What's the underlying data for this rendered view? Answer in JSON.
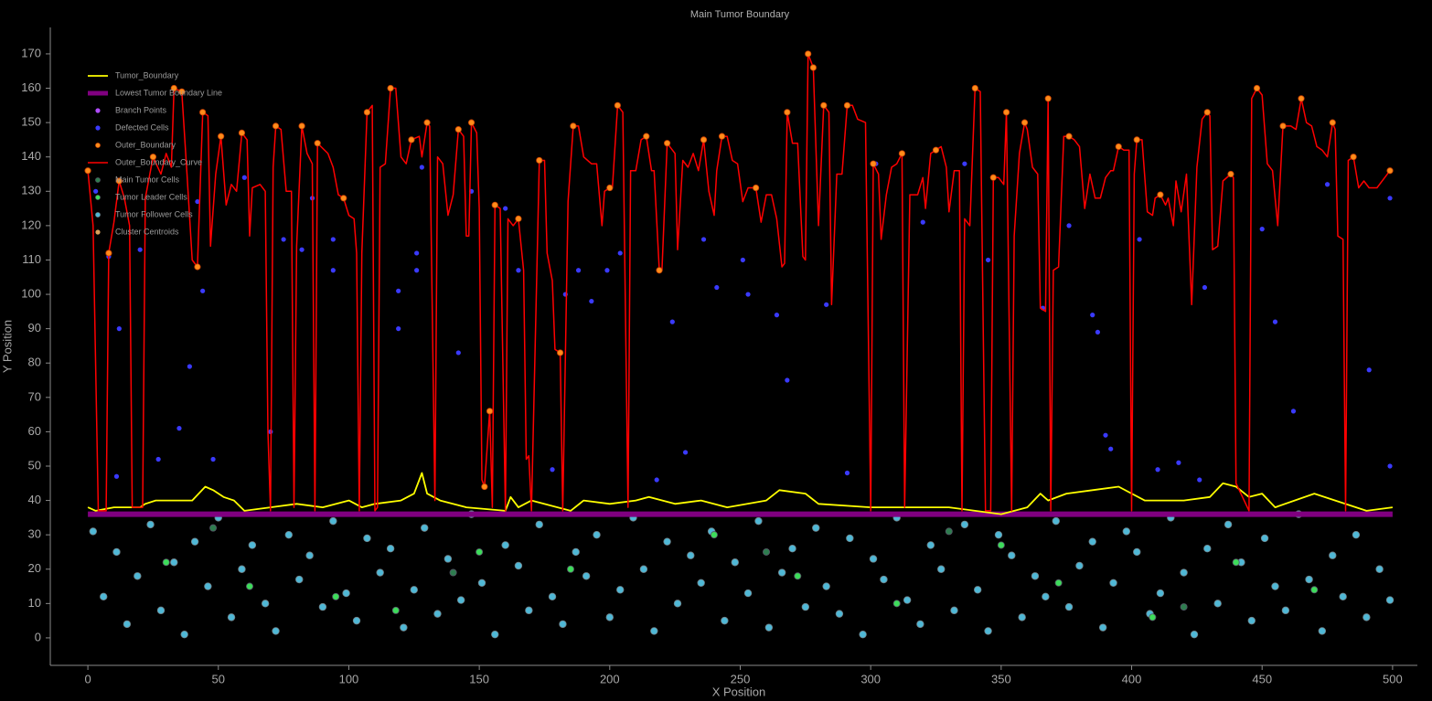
{
  "chart_data": {
    "type": "scatter-line",
    "title": "Main Tumor Boundary",
    "xlabel": "X Position",
    "ylabel": "Y Position",
    "xlim": [
      -14.4,
      509.5
    ],
    "ylim": [
      -8,
      177.7
    ],
    "xticks": [
      0,
      50,
      100,
      150,
      200,
      250,
      300,
      350,
      400,
      450,
      500
    ],
    "yticks": [
      0,
      10,
      20,
      30,
      40,
      50,
      60,
      70,
      80,
      90,
      100,
      110,
      120,
      130,
      140,
      150,
      160,
      170
    ],
    "grid": false,
    "legend": "upper left",
    "series": [
      {
        "name": "Tumor_Boundary",
        "kind": "line",
        "color": "#ffff00",
        "x": [
          0,
          3,
          10,
          20,
          22,
          26,
          30,
          40,
          45,
          48,
          52,
          56,
          60,
          70,
          80,
          90,
          100,
          105,
          110,
          120,
          125,
          128,
          130,
          135,
          145,
          160,
          162,
          165,
          170,
          180,
          185,
          190,
          200,
          210,
          215,
          225,
          235,
          245,
          260,
          265,
          275,
          280,
          300,
          320,
          330,
          340,
          350,
          360,
          365,
          368,
          375,
          385,
          395,
          405,
          420,
          430,
          435,
          440,
          445,
          450,
          455,
          470,
          478,
          490,
          500
        ],
        "values": [
          38,
          37,
          38,
          38,
          39,
          40,
          40,
          40,
          44,
          43,
          41,
          40,
          37,
          38,
          39,
          38,
          40,
          38,
          39,
          40,
          42,
          48,
          42,
          40,
          38,
          37,
          41,
          38,
          40,
          38,
          37,
          40,
          39,
          40,
          41,
          39,
          40,
          38,
          40,
          43,
          42,
          39,
          38,
          38,
          38,
          37,
          36,
          38,
          42,
          40,
          42,
          43,
          44,
          40,
          40,
          41,
          45,
          44,
          41,
          42,
          38,
          42,
          40,
          37,
          38
        ]
      },
      {
        "name": "Lowest Tumor Boundary Line",
        "kind": "line",
        "color": "#800080",
        "x": [
          0,
          500
        ],
        "values": [
          36,
          36
        ]
      },
      {
        "name": "Branch Points",
        "kind": "scatter",
        "color": "#b04cff",
        "x": [],
        "values": []
      },
      {
        "name": "Defected Cells",
        "kind": "scatter",
        "color": "#3a3aff",
        "x": [
          3,
          8,
          11,
          12,
          20,
          27,
          35,
          39,
          42,
          44,
          48,
          60,
          70,
          75,
          82,
          86,
          94,
          94,
          119,
          119,
          126,
          126,
          128,
          142,
          147,
          160,
          165,
          178,
          183,
          188,
          193,
          199,
          204,
          218,
          224,
          229,
          236,
          241,
          251,
          253,
          264,
          268,
          283,
          291,
          302,
          320,
          336,
          345,
          366,
          376,
          385,
          387,
          390,
          392,
          403,
          410,
          418,
          426,
          428,
          450,
          455,
          462,
          475,
          491,
          499,
          499
        ],
        "values": [
          130,
          111,
          47,
          90,
          113,
          52,
          61,
          79,
          127,
          101,
          52,
          134,
          60,
          116,
          113,
          128,
          107,
          116,
          90,
          101,
          107,
          112,
          137,
          83,
          130,
          125,
          107,
          49,
          100,
          107,
          98,
          107,
          112,
          46,
          92,
          54,
          116,
          102,
          110,
          100,
          94,
          75,
          97,
          48,
          138,
          121,
          138,
          110,
          96,
          120,
          94,
          89,
          59,
          55,
          116,
          49,
          51,
          46,
          102,
          119,
          92,
          66,
          132,
          78,
          50,
          128
        ]
      },
      {
        "name": "Outer_Boundary",
        "kind": "scatter",
        "color": "#ff8c1a",
        "x": [
          0,
          8,
          12,
          25,
          33,
          36,
          42,
          44,
          51,
          59,
          72,
          82,
          88,
          98,
          107,
          116,
          124,
          130,
          142,
          147,
          152,
          154,
          156,
          165,
          173,
          181,
          186,
          200,
          203,
          214,
          219,
          222,
          236,
          243,
          256,
          268,
          276,
          278,
          282,
          291,
          301,
          312,
          325,
          340,
          347,
          352,
          359,
          368,
          376,
          395,
          402,
          411,
          429,
          438,
          448,
          458,
          465,
          477,
          485,
          499
        ],
        "values": [
          136,
          112,
          133,
          140,
          160,
          159,
          108,
          153,
          146,
          147,
          149,
          149,
          144,
          128,
          153,
          160,
          145,
          150,
          148,
          150,
          44,
          66,
          126,
          122,
          139,
          83,
          149,
          131,
          155,
          146,
          107,
          144,
          145,
          146,
          131,
          153,
          170,
          166,
          155,
          155,
          138,
          141,
          142,
          160,
          134,
          153,
          150,
          157,
          146,
          143,
          145,
          129,
          153,
          135,
          160,
          149,
          157,
          150,
          140,
          136
        ]
      },
      {
        "name": "Outer_Boundary_Curve",
        "kind": "line",
        "color": "#ff0000",
        "x": [
          0,
          2,
          4,
          7,
          8,
          10,
          12,
          14,
          16,
          17,
          21,
          22,
          25,
          28,
          30,
          32,
          33,
          36,
          38,
          40,
          42,
          44,
          46,
          47,
          49,
          51,
          53,
          55,
          57,
          59,
          61,
          62,
          63,
          66,
          68,
          69,
          70,
          71,
          72,
          74,
          76,
          78,
          79,
          80,
          82,
          84,
          86,
          87,
          88,
          92,
          94,
          96,
          98,
          100,
          102,
          103,
          104,
          105,
          107,
          109,
          110,
          111,
          112,
          114,
          116,
          118,
          120,
          122,
          124,
          127,
          128,
          130,
          131,
          133,
          134,
          136,
          138,
          140,
          142,
          144,
          145,
          146,
          147,
          149,
          150,
          151,
          152,
          154,
          155,
          156,
          158,
          160,
          161,
          163,
          165,
          167,
          168,
          169,
          170,
          173,
          175,
          176,
          178,
          179,
          181,
          182,
          184,
          186,
          188,
          190,
          193,
          195,
          197,
          198,
          200,
          201,
          203,
          205,
          207,
          208,
          210,
          212,
          214,
          216,
          217,
          219,
          220,
          222,
          225,
          226,
          228,
          230,
          232,
          234,
          236,
          238,
          240,
          241,
          243,
          245,
          247,
          249,
          251,
          253,
          256,
          258,
          260,
          262,
          264,
          266,
          267,
          268,
          270,
          272,
          274,
          275,
          276,
          278,
          280,
          282,
          284,
          285,
          287,
          289,
          291,
          293,
          295,
          298,
          300,
          301,
          303,
          304,
          306,
          308,
          310,
          312,
          313,
          315,
          318,
          320,
          321,
          323,
          325,
          327,
          329,
          330,
          332,
          334,
          335,
          336,
          338,
          340,
          342,
          344,
          346,
          347,
          349,
          351,
          352,
          354,
          355,
          357,
          359,
          360,
          362,
          364,
          365,
          367,
          368,
          369,
          370,
          372,
          374,
          376,
          378,
          380,
          382,
          384,
          386,
          388,
          390,
          392,
          393,
          395,
          397,
          399,
          400,
          401,
          402,
          404,
          406,
          408,
          409,
          411,
          413,
          414,
          416,
          417,
          419,
          421,
          423,
          425,
          427,
          429,
          430,
          431,
          433,
          435,
          438,
          439,
          440,
          445,
          446,
          448,
          450,
          452,
          454,
          456,
          458,
          461,
          463,
          465,
          467,
          469,
          471,
          473,
          475,
          477,
          478,
          479,
          481,
          482,
          483,
          485,
          487,
          489,
          491,
          494,
          497,
          499
        ],
        "values": [
          136,
          120,
          37,
          37,
          112,
          121,
          133,
          128,
          120,
          38,
          38,
          128,
          140,
          135,
          141,
          137,
          160,
          159,
          135,
          110,
          108,
          153,
          152,
          114,
          135,
          146,
          126,
          132,
          130,
          147,
          145,
          117,
          131,
          132,
          130,
          60,
          37,
          137,
          149,
          148,
          130,
          130,
          38,
          114,
          149,
          141,
          138,
          37,
          144,
          141,
          137,
          129,
          128,
          123,
          122,
          112,
          37,
          112,
          153,
          155,
          37,
          38,
          137,
          138,
          160,
          160,
          140,
          138,
          145,
          146,
          140,
          150,
          149,
          40,
          140,
          138,
          123,
          129,
          148,
          146,
          117,
          117,
          150,
          147,
          125,
          46,
          44,
          66,
          38,
          126,
          125,
          37,
          122,
          120,
          122,
          107,
          52,
          53,
          37,
          139,
          139,
          112,
          104,
          84,
          83,
          37,
          127,
          149,
          149,
          140,
          138,
          138,
          120,
          130,
          131,
          131,
          155,
          153,
          38,
          136,
          136,
          145,
          146,
          136,
          136,
          107,
          107,
          144,
          141,
          113,
          139,
          137,
          141,
          136,
          145,
          130,
          123,
          136,
          146,
          146,
          139,
          138,
          127,
          131,
          131,
          121,
          129,
          129,
          122,
          108,
          109,
          153,
          144,
          144,
          111,
          110,
          170,
          166,
          120,
          155,
          153,
          97,
          135,
          135,
          155,
          155,
          151,
          150,
          37,
          138,
          135,
          116,
          129,
          137,
          138,
          141,
          38,
          129,
          129,
          134,
          125,
          141,
          142,
          143,
          137,
          124,
          136,
          136,
          37,
          122,
          120,
          160,
          159,
          37,
          37,
          134,
          134,
          132,
          153,
          37,
          117,
          141,
          150,
          148,
          137,
          135,
          96,
          95,
          157,
          37,
          107,
          108,
          146,
          146,
          145,
          143,
          125,
          135,
          128,
          128,
          134,
          136,
          136,
          143,
          142,
          142,
          37,
          135,
          145,
          145,
          124,
          123,
          128,
          129,
          126,
          128,
          120,
          133,
          124,
          135,
          97,
          137,
          151,
          153,
          152,
          113,
          114,
          133,
          135,
          134,
          45,
          37,
          157,
          160,
          158,
          138,
          136,
          120,
          149,
          149,
          148,
          157,
          150,
          149,
          143,
          142,
          140,
          150,
          148,
          117,
          116,
          37,
          139,
          140,
          131,
          133,
          131,
          131,
          134,
          136
        ]
      },
      {
        "name": "Main Tumor Cells",
        "kind": "scatter",
        "color": "#2e7d4f",
        "x": [
          48,
          140,
          260,
          330,
          420
        ],
        "values": [
          32,
          19,
          25,
          31,
          9
        ]
      },
      {
        "name": "Tumor Leader Cells",
        "kind": "scatter",
        "color": "#3ddc5a",
        "x": [
          30,
          62,
          95,
          118,
          150,
          185,
          240,
          272,
          310,
          350,
          372,
          408,
          440,
          470
        ],
        "values": [
          22,
          15,
          12,
          8,
          25,
          20,
          30,
          18,
          10,
          27,
          16,
          6,
          22,
          14
        ]
      },
      {
        "name": "Tumor Follower Cells",
        "kind": "scatter",
        "color": "#4fb8d6",
        "x": [
          2,
          6,
          11,
          15,
          19,
          24,
          28,
          33,
          37,
          41,
          46,
          50,
          55,
          59,
          63,
          68,
          72,
          77,
          81,
          85,
          90,
          94,
          99,
          103,
          107,
          112,
          116,
          121,
          125,
          129,
          134,
          138,
          143,
          147,
          151,
          156,
          160,
          165,
          169,
          173,
          178,
          182,
          187,
          191,
          195,
          200,
          204,
          209,
          213,
          217,
          222,
          226,
          231,
          235,
          239,
          244,
          248,
          253,
          257,
          261,
          266,
          270,
          275,
          279,
          283,
          288,
          292,
          297,
          301,
          305,
          310,
          314,
          319,
          323,
          327,
          332,
          336,
          341,
          345,
          349,
          354,
          358,
          363,
          367,
          371,
          376,
          380,
          385,
          389,
          393,
          398,
          402,
          407,
          411,
          415,
          420,
          424,
          429,
          433,
          437,
          442,
          446,
          451,
          455,
          459,
          464,
          468,
          473,
          477,
          481,
          486,
          490,
          495,
          499
        ],
        "values": [
          31,
          12,
          25,
          4,
          18,
          33,
          8,
          22,
          1,
          28,
          15,
          35,
          6,
          20,
          27,
          10,
          2,
          30,
          17,
          24,
          9,
          34,
          13,
          5,
          29,
          19,
          26,
          3,
          14,
          32,
          7,
          23,
          11,
          36,
          16,
          1,
          27,
          21,
          8,
          33,
          12,
          4,
          25,
          18,
          30,
          6,
          14,
          35,
          20,
          2,
          28,
          10,
          24,
          16,
          31,
          5,
          22,
          13,
          34,
          3,
          19,
          26,
          9,
          32,
          15,
          7,
          29,
          1,
          23,
          17,
          35,
          11,
          4,
          27,
          20,
          8,
          33,
          14,
          2,
          30,
          24,
          6,
          18,
          12,
          34,
          9,
          21,
          28,
          3,
          16,
          31,
          25,
          7,
          13,
          35,
          19,
          1,
          26,
          10,
          33,
          22,
          5,
          29,
          15,
          8,
          36,
          17,
          2,
          24,
          12,
          30,
          6,
          20,
          11
        ]
      },
      {
        "name": "Cluster Centroids",
        "kind": "scatter",
        "color": "#d9a05b",
        "x": [],
        "values": []
      }
    ]
  }
}
